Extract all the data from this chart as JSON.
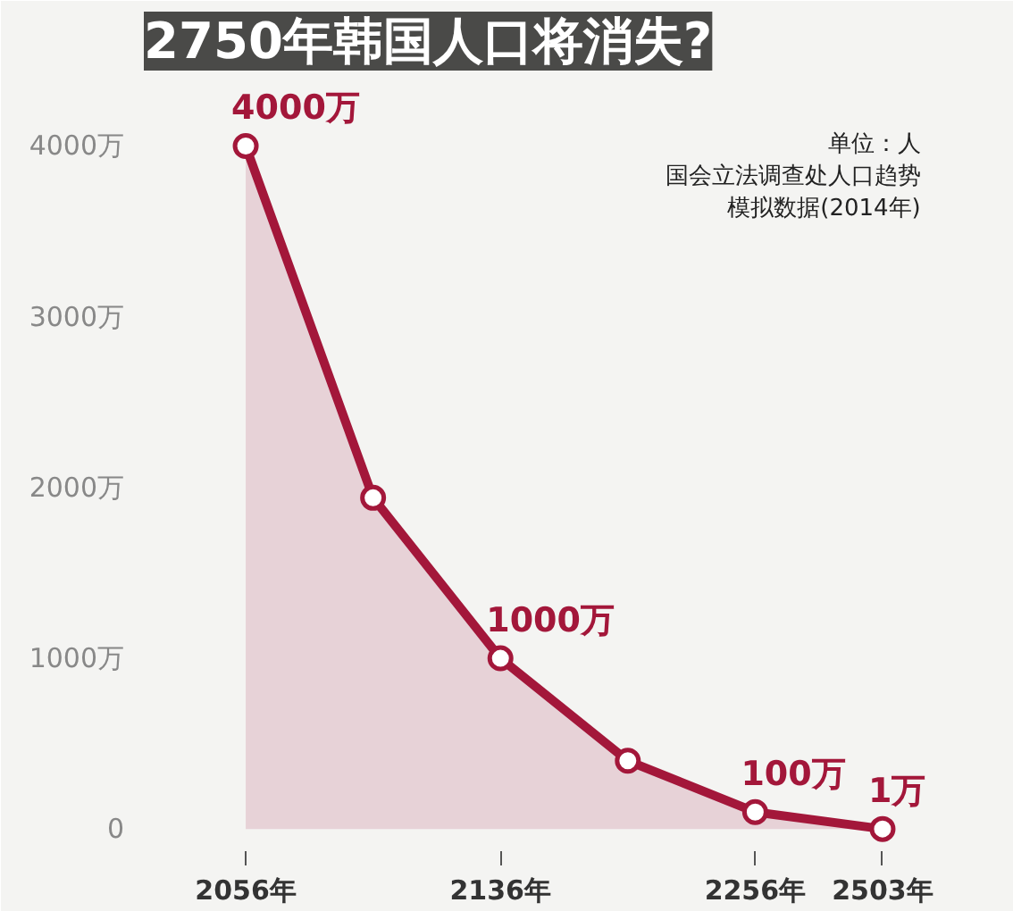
{
  "chart_data": {
    "type": "area",
    "title": "2750年韩国人口将消失?",
    "categories": [
      "2056年",
      null,
      "2136年",
      null,
      "2256年",
      "2503年"
    ],
    "series": [
      {
        "color": "#a3173a",
        "values": [
          4000,
          1940,
          1000,
          400,
          100,
          1
        ],
        "value_labels": [
          "4000万",
          null,
          "1000万",
          null,
          "100万",
          "1万"
        ]
      }
    ],
    "ylim": [
      -150,
      4400
    ],
    "yticks": [
      {
        "value": 0,
        "label": "0"
      },
      {
        "value": 1000,
        "label": "1000万"
      },
      {
        "value": 2000,
        "label": "2000万"
      },
      {
        "value": 3000,
        "label": "3000万"
      },
      {
        "value": 4000,
        "label": "4000万"
      }
    ],
    "marker": "circle",
    "annotations": [
      "单位：人",
      "国会立法调查处人口趋势",
      "模拟数据(2014年)"
    ]
  }
}
